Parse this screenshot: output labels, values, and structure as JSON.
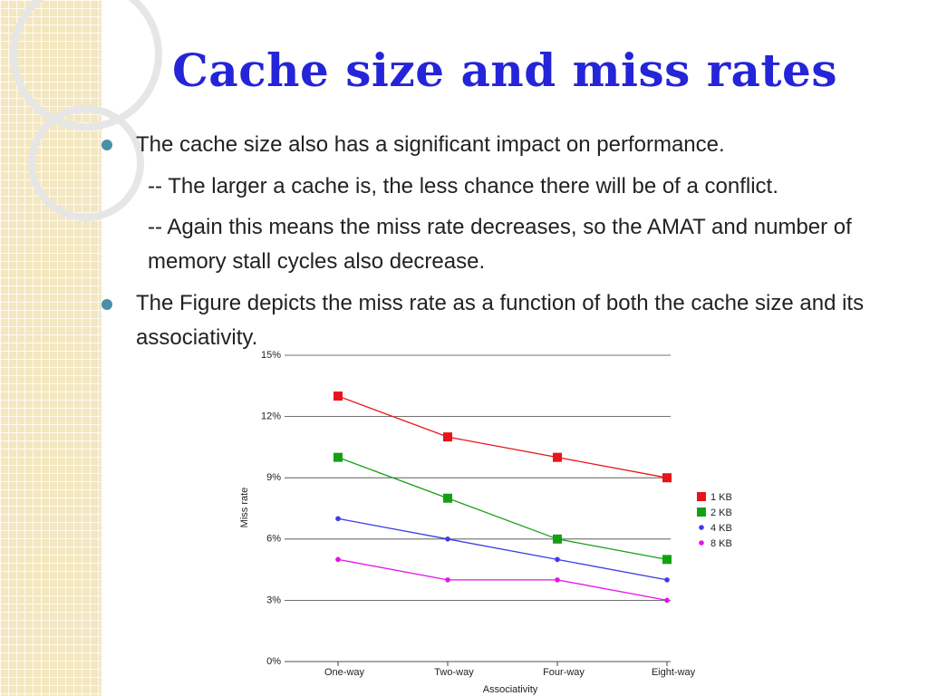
{
  "slide": {
    "title": "Cache size and miss rates",
    "bullets": [
      {
        "text": "The cache size also has a significant impact on performance.",
        "subitems": [
          "-- The larger a cache is, the less chance there will be of a conflict.",
          "-- Again this means the miss rate decreases, so the AMAT and number of memory stall cycles also decrease."
        ]
      },
      {
        "text": "The Figure depicts the miss rate as a function of both the cache size and its associativity.",
        "subitems": []
      }
    ]
  },
  "chart_data": {
    "type": "line",
    "x_label": "Associativity",
    "y_label": "Miss rate",
    "categories": [
      "One-way",
      "Two-way",
      "Four-way",
      "Eight-way"
    ],
    "series": [
      {
        "name": "1 KB",
        "color": "#e8141a",
        "marker": "square",
        "values": [
          13,
          11,
          10,
          9
        ]
      },
      {
        "name": "2 KB",
        "color": "#14a014",
        "marker": "square",
        "values": [
          10,
          8,
          6,
          5
        ]
      },
      {
        "name": "4 KB",
        "color": "#3c3ce6",
        "marker": "circle",
        "values": [
          7,
          6,
          5,
          4
        ]
      },
      {
        "name": "8 KB",
        "color": "#e614e6",
        "marker": "circle",
        "values": [
          5,
          4,
          4,
          3
        ]
      }
    ],
    "ylim": [
      0,
      15
    ],
    "yticks": [
      {
        "value": 0,
        "label": "0%"
      },
      {
        "value": 3,
        "label": "3%"
      },
      {
        "value": 6,
        "label": "6%"
      },
      {
        "value": 9,
        "label": "9%"
      },
      {
        "value": 12,
        "label": "12%"
      },
      {
        "value": 15,
        "label": "15%"
      }
    ],
    "grid": true,
    "legend": "right"
  }
}
